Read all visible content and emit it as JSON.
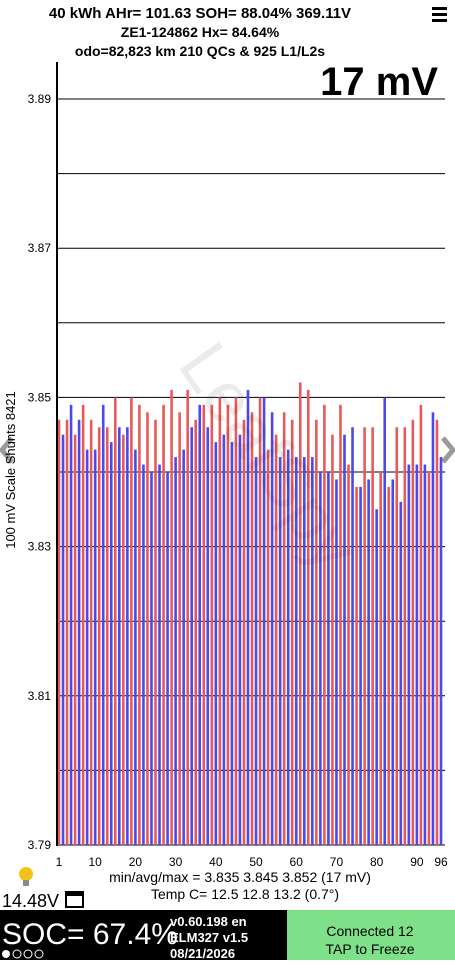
{
  "header": {
    "line1": "40 kWh  AHr= 101.63  SOH= 88.04%   369.11V",
    "line2": "ZE1-124862   Hx= 84.64%",
    "line3": "odo=82,823 km 210 QCs & 925 L1/L2s",
    "big_reading": "17 mV"
  },
  "chart_data": {
    "type": "bar",
    "watermark": "LeafSpy",
    "y_label": "100 mV Scale Shunts 8421",
    "annotations": [
      "min/avg/max = 3.835 3.845 3.852  (17 mV)",
      "Temp C= 12.5  12.8  13.2  (0.7°)"
    ],
    "categories": [
      1,
      2,
      3,
      4,
      5,
      6,
      7,
      8,
      9,
      10,
      11,
      12,
      13,
      14,
      15,
      16,
      17,
      18,
      19,
      20,
      21,
      22,
      23,
      24,
      25,
      26,
      27,
      28,
      29,
      30,
      31,
      32,
      33,
      34,
      35,
      36,
      37,
      38,
      39,
      40,
      41,
      42,
      43,
      44,
      45,
      46,
      47,
      48,
      49,
      50,
      51,
      52,
      53,
      54,
      55,
      56,
      57,
      58,
      59,
      60,
      61,
      62,
      63,
      64,
      65,
      66,
      67,
      68,
      69,
      70,
      71,
      72,
      73,
      74,
      75,
      76,
      77,
      78,
      79,
      80,
      81,
      82,
      83,
      84,
      85,
      86,
      87,
      88,
      89,
      90,
      91,
      92,
      93,
      94,
      95,
      96
    ],
    "values": [
      3.847,
      3.845,
      3.847,
      3.849,
      3.845,
      3.847,
      3.849,
      3.843,
      3.847,
      3.843,
      3.846,
      3.849,
      3.846,
      3.844,
      3.85,
      3.846,
      3.845,
      3.846,
      3.85,
      3.843,
      3.849,
      3.841,
      3.848,
      3.84,
      3.847,
      3.841,
      3.849,
      3.84,
      3.851,
      3.842,
      3.848,
      3.843,
      3.851,
      3.846,
      3.847,
      3.849,
      3.849,
      3.846,
      3.849,
      3.844,
      3.85,
      3.845,
      3.849,
      3.844,
      3.85,
      3.845,
      3.847,
      3.851,
      3.848,
      3.842,
      3.85,
      3.85,
      3.843,
      3.848,
      3.845,
      3.842,
      3.848,
      3.843,
      3.847,
      3.842,
      3.852,
      3.842,
      3.851,
      3.842,
      3.847,
      3.84,
      3.849,
      3.84,
      3.845,
      3.839,
      3.849,
      3.845,
      3.841,
      3.846,
      3.838,
      3.838,
      3.846,
      3.839,
      3.846,
      3.835,
      3.84,
      3.85,
      3.838,
      3.839,
      3.846,
      3.836,
      3.846,
      3.841,
      3.847,
      3.841,
      3.849,
      3.841,
      3.84,
      3.848,
      3.847,
      3.842
    ],
    "bar_colors": [
      "#e85a5a",
      "#4a4ae8"
    ],
    "xticks": [
      1,
      10,
      20,
      30,
      40,
      50,
      60,
      70,
      80,
      90,
      96
    ],
    "ylim": [
      3.79,
      3.89
    ],
    "yticks": [
      3.79,
      3.81,
      3.83,
      3.85,
      3.87,
      3.89
    ],
    "y_minor_ticks": [
      3.8,
      3.82,
      3.84,
      3.86,
      3.88
    ],
    "grid": true
  },
  "status": {
    "aux_voltage": "14.48V",
    "soc": "SOC= 67.4%",
    "version": "v0.60.198 en",
    "adapter": "ELM327 v1.5",
    "date": "08/21/2026",
    "connection": "Connected 12",
    "freeze": "TAP to Freeze"
  }
}
